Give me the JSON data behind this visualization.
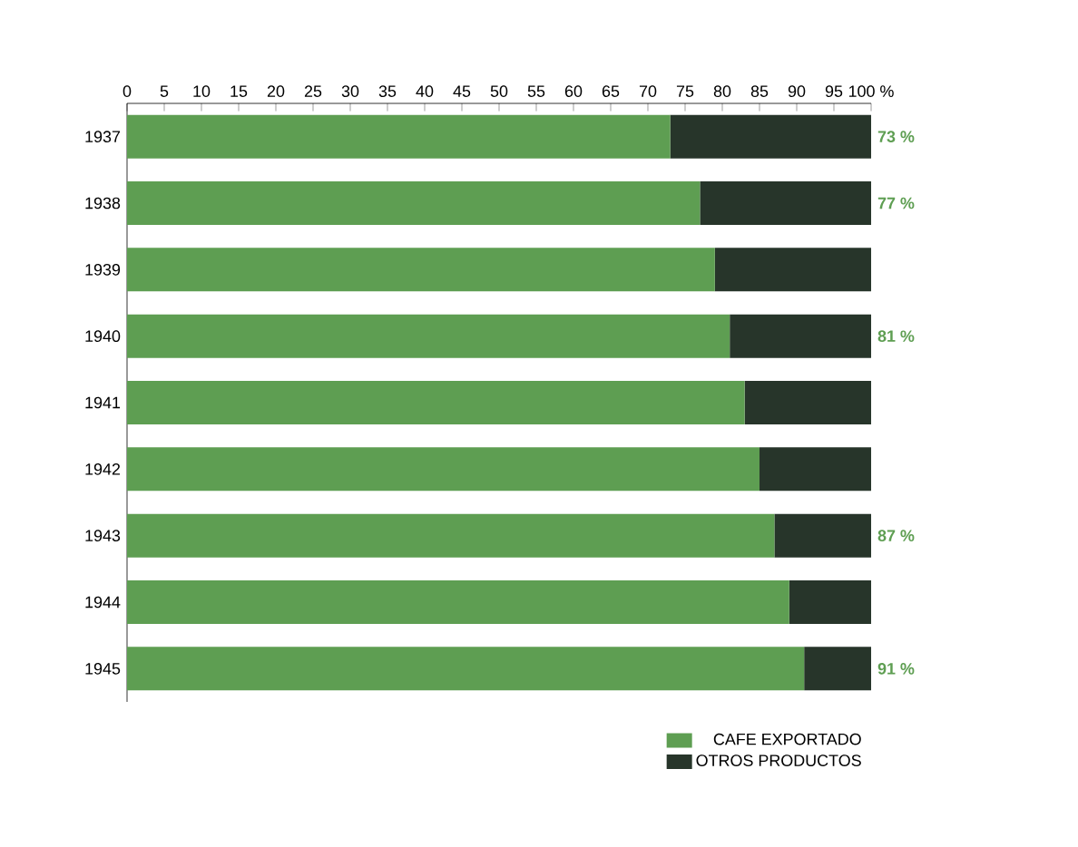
{
  "chart_data": {
    "type": "bar",
    "orientation": "horizontal",
    "stacked": true,
    "categories": [
      "1937",
      "1938",
      "1939",
      "1940",
      "1941",
      "1942",
      "1943",
      "1944",
      "1945"
    ],
    "series": [
      {
        "name": "CAFE EXPORTADO",
        "color": "#5e9e52",
        "values": [
          73,
          77,
          79,
          81,
          83,
          85,
          87,
          89,
          91
        ],
        "value_labels": [
          "73 %",
          "77 %",
          null,
          "81 %",
          null,
          null,
          "87 %",
          null,
          "91 %"
        ]
      },
      {
        "name": "OTROS PRODUCTOS",
        "color": "#27352a",
        "values": [
          27,
          23,
          21,
          19,
          17,
          15,
          13,
          11,
          9
        ]
      }
    ],
    "xlim": [
      0,
      100
    ],
    "xticks": [
      0,
      5,
      10,
      15,
      20,
      25,
      30,
      35,
      40,
      45,
      50,
      55,
      60,
      65,
      70,
      75,
      80,
      85,
      90,
      95,
      {
        "value": 100,
        "label": "100 %"
      }
    ],
    "legend": "bottom right"
  }
}
